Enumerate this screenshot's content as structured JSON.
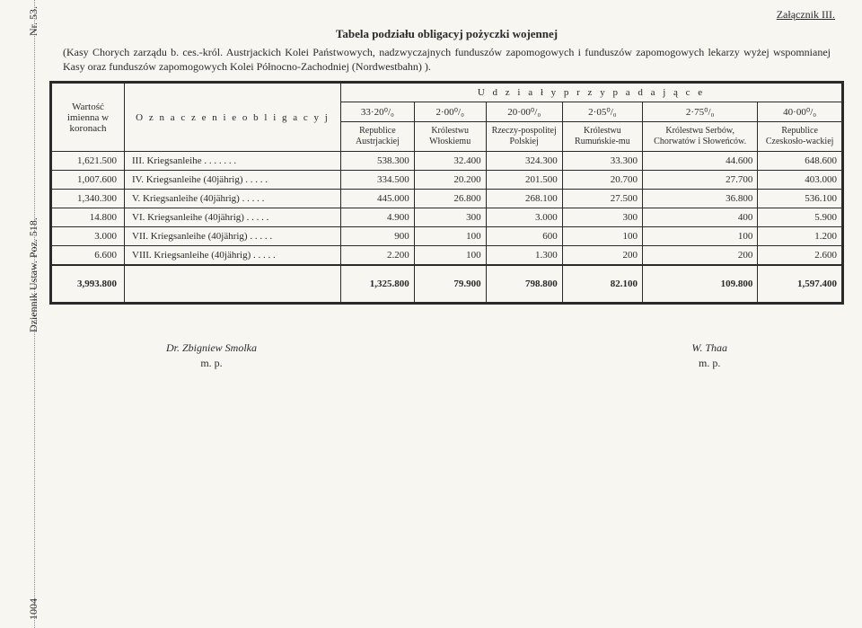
{
  "side": {
    "nr": "Nr. 53.",
    "dz": "Dziennik Ustaw.  Poz. 518.",
    "pg": "1004"
  },
  "attachment": "Załącznik III.",
  "title": "Tabela podziału obligacyj pożyczki wojennej",
  "subtitle": "(Kasy Chorych zarządu b. ces.-król. Austrjackich Kolei Państwowych, nadzwyczajnych funduszów zapomogowych i funduszów zapomogowych lekarzy wyżej wspomnianej Kasy oraz funduszów zapomogowych Kolei Północno-Zachodniej (Nordwestbahn) ).",
  "hdr": {
    "wartosc": "Wartość imienna w koronach",
    "oznaczenie": "O z n a c z e n i e   o b l i g a c y j",
    "udzialy": "U d z i a ł y   p r z y p a d a j ą c e"
  },
  "pct": [
    "33·20⁰/₀",
    "2·00⁰/₀",
    "20·00⁰/₀",
    "2·05⁰/₀",
    "2·75⁰/₀",
    "40·00⁰/₀"
  ],
  "cols": [
    "Republice Austrjackiej",
    "Królestwu Włoskiemu",
    "Rzeczy-pospolitej Polskiej",
    "Królestwu Rumuńskie-mu",
    "Królestwu Serbów, Chorwatów i Słoweńców.",
    "Republice Czeskosło-wackiej"
  ],
  "rows": [
    {
      "w": "1,621.500",
      "o": "III. Kriegsanleihe    .   .   .   .   .   .   .",
      "v": [
        "538.300",
        "32.400",
        "324.300",
        "33.300",
        "44.600",
        "648.600"
      ]
    },
    {
      "w": "1,007.600",
      "o": "IV. Kriegsanleihe (40jährig)   .   .   .   .   .",
      "v": [
        "334.500",
        "20.200",
        "201.500",
        "20.700",
        "27.700",
        "403.000"
      ]
    },
    {
      "w": "1,340.300",
      "o": "V. Kriegsanleihe (40jährig)   .   .   .   .   .",
      "v": [
        "445.000",
        "26.800",
        "268.100",
        "27.500",
        "36.800",
        "536.100"
      ]
    },
    {
      "w": "14.800",
      "o": "VI. Kriegsanleihe (40jährig)   .   .   .   .   .",
      "v": [
        "4.900",
        "300",
        "3.000",
        "300",
        "400",
        "5.900"
      ]
    },
    {
      "w": "3.000",
      "o": "VII. Kriegsanleihe (40jährig)   .   .   .   .   .",
      "v": [
        "900",
        "100",
        "600",
        "100",
        "100",
        "1.200"
      ]
    },
    {
      "w": "6.600",
      "o": "VIII. Kriegsanleihe (40jährig)   .   .   .   .   .",
      "v": [
        "2.200",
        "100",
        "1.300",
        "200",
        "200",
        "2.600"
      ]
    }
  ],
  "total": {
    "w": "3,993.800",
    "o": "",
    "v": [
      "1,325.800",
      "79.900",
      "798.800",
      "82.100",
      "109.800",
      "1,597.400"
    ]
  },
  "sig": {
    "left_name": "Dr. Zbigniew Smolka",
    "left_mp": "m. p.",
    "right_name": "W. Thaa",
    "right_mp": "m. p."
  }
}
